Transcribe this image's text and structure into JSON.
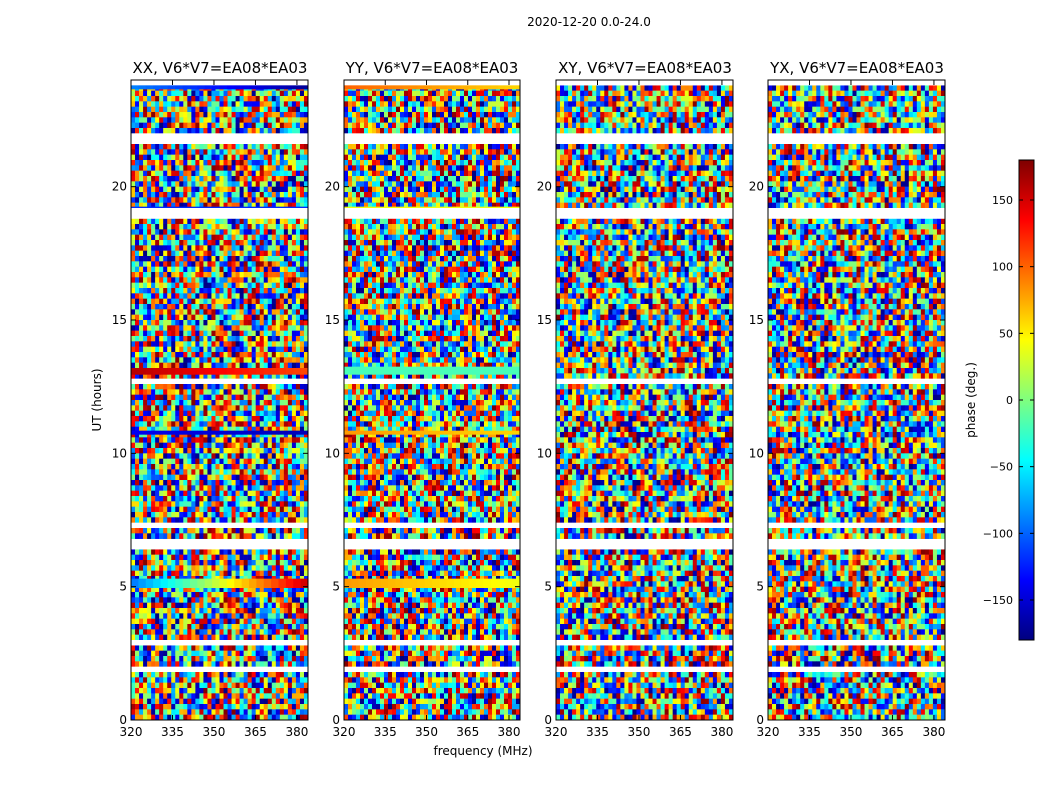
{
  "figure_title": "2020-12-20 0.0-24.0",
  "colors": {
    "jet": [
      "#00007f",
      "#0000ff",
      "#007fff",
      "#00ffff",
      "#7fff7f",
      "#ffff00",
      "#ff7f00",
      "#ff0000",
      "#7f0000"
    ],
    "gap": "#ffffff",
    "frame": "#000000"
  },
  "chart_data": {
    "type": "heatmap",
    "xlabel": "frequency (MHz)",
    "ylabel": "UT (hours)",
    "xlim": [
      320,
      384
    ],
    "ylim": [
      0,
      24
    ],
    "x_ticks": [
      "320",
      "335",
      "350",
      "365",
      "380"
    ],
    "x_tick_values": [
      320,
      335,
      350,
      365,
      380
    ],
    "y_ticks": [
      "0",
      "5",
      "10",
      "15",
      "20"
    ],
    "y_tick_values": [
      0,
      5,
      10,
      15,
      20
    ],
    "colorbar": {
      "label": "phase (deg.)",
      "range": [
        -180,
        180
      ],
      "ticks": [
        "150",
        "100",
        "50",
        "0",
        "−50",
        "−100",
        "−150"
      ],
      "tick_values": [
        150,
        100,
        50,
        0,
        -50,
        -100,
        -150
      ],
      "colormap": "jet"
    },
    "data_gaps_hours": [
      [
        1.8,
        2.0
      ],
      [
        2.8,
        3.0
      ],
      [
        6.4,
        6.7
      ],
      [
        7.2,
        7.4
      ],
      [
        12.6,
        12.8
      ],
      [
        18.8,
        19.2
      ],
      [
        21.7,
        22.0
      ],
      [
        23.8,
        24.0
      ]
    ],
    "panels": [
      {
        "title": "XX, V6*V7=EA08*EA03",
        "coherent_bands": [
          {
            "t": [
              23.65,
              23.9
            ],
            "phase_start": -90,
            "phase_end": -170
          },
          {
            "t": [
              19.1,
              19.25
            ],
            "phase_start": -120,
            "phase_end": -120
          },
          {
            "t": [
              12.95,
              13.2
            ],
            "phase_start": 160,
            "phase_end": 110
          },
          {
            "t": [
              10.7,
              10.85
            ],
            "phase_start": -140,
            "phase_end": -160
          },
          {
            "t": [
              4.95,
              5.3
            ],
            "phase_start": -90,
            "phase_end": 150
          }
        ]
      },
      {
        "title": "YY, V6*V7=EA08*EA03",
        "coherent_bands": [
          {
            "t": [
              23.65,
              23.9
            ],
            "phase_start": 100,
            "phase_end": 60
          },
          {
            "t": [
              19.1,
              19.25
            ],
            "phase_start": 40,
            "phase_end": 40
          },
          {
            "t": [
              12.95,
              13.25
            ],
            "phase_start": -20,
            "phase_end": -20
          },
          {
            "t": [
              10.7,
              10.85
            ],
            "phase_start": 80,
            "phase_end": 60
          },
          {
            "t": [
              4.95,
              5.3
            ],
            "phase_start": 80,
            "phase_end": 40
          }
        ]
      },
      {
        "title": "XY, V6*V7=EA08*EA03",
        "coherent_bands": []
      },
      {
        "title": "YX, V6*V7=EA08*EA03",
        "coherent_bands": []
      }
    ]
  }
}
